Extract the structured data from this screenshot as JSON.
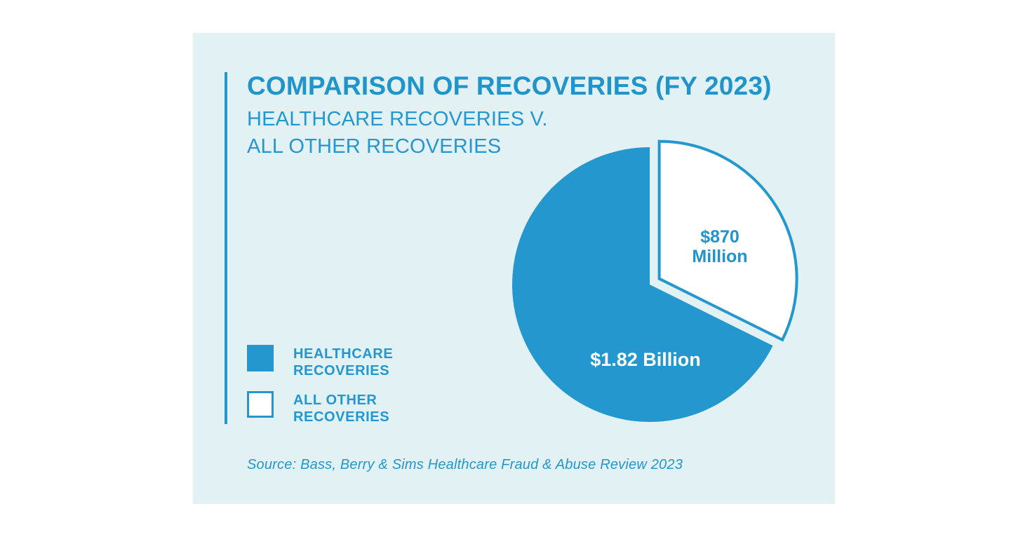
{
  "colors": {
    "accent": "#2397CE",
    "title_blue": "#2095CB",
    "card_background": "#E2F1F3",
    "page_background": "#FFFFFF"
  },
  "header": {
    "title": "COMPARISON OF RECOVERIES (FY 2023)",
    "subtitle_line1": "HEALTHCARE RECOVERIES V.",
    "subtitle_line2": "ALL OTHER RECOVERIES"
  },
  "legend": {
    "items": [
      {
        "label_line1": "HEALTHCARE",
        "label_line2": "RECOVERIES",
        "swatch": "filled"
      },
      {
        "label_line1": "ALL OTHER",
        "label_line2": "RECOVERIES",
        "swatch": "outline"
      }
    ]
  },
  "source": "Source: Bass, Berry & Sims Healthcare Fraud & Abuse Review 2023",
  "chart_data": {
    "type": "pie",
    "title": "Comparison of Recoveries (FY 2023)",
    "subtitle": "Healthcare Recoveries v. All Other Recoveries",
    "categories": [
      "Healthcare Recoveries",
      "All Other Recoveries"
    ],
    "values": [
      1.82,
      0.87
    ],
    "unit": "billions USD",
    "labels": [
      "$1.82 Billion",
      "$870 Million"
    ],
    "percentages": [
      67.7,
      32.3
    ],
    "slice_colors": [
      "#2397CE",
      "#FFFFFF"
    ],
    "start_angle_deg": 0,
    "direction": "clockwise",
    "exploded_slice": "All Other Recoveries",
    "legend_position": "left",
    "pie_labels": {
      "healthcare": "$1.82 Billion",
      "other_line1": "$870",
      "other_line2": "Million"
    }
  }
}
